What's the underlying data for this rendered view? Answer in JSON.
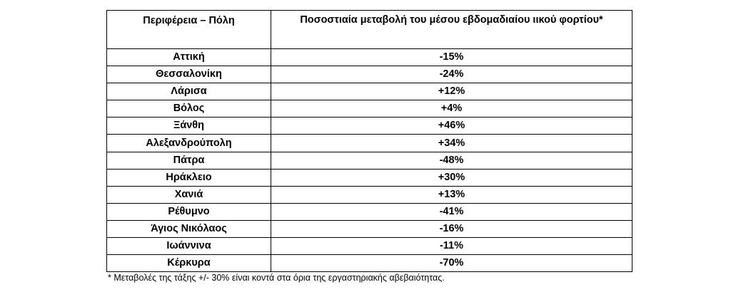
{
  "table": {
    "headers": [
      "Περιφέρεια – Πόλη",
      "Ποσοστιαία μεταβολή του μέσου εβδομαδιαίου ιικού φορτίου*"
    ],
    "rows": [
      {
        "city": "Αττική",
        "change": "-15%"
      },
      {
        "city": "Θεσσαλονίκη",
        "change": "-24%"
      },
      {
        "city": "Λάρισα",
        "change": "+12%"
      },
      {
        "city": "Βόλος",
        "change": "+4%"
      },
      {
        "city": "Ξάνθη",
        "change": "+46%"
      },
      {
        "city": "Αλεξανδρούπολη",
        "change": "+34%"
      },
      {
        "city": "Πάτρα",
        "change": "-48%"
      },
      {
        "city": "Ηράκλειο",
        "change": "+30%"
      },
      {
        "city": "Χανιά",
        "change": "+13%"
      },
      {
        "city": "Ρέθυμνο",
        "change": "-41%"
      },
      {
        "city": "Άγιος Νικόλαος",
        "change": "-16%"
      },
      {
        "city": "Ιωάννινα",
        "change": "-11%"
      },
      {
        "city": "Κέρκυρα",
        "change": "-70%"
      }
    ]
  },
  "footnote": "* Μεταβολές της τάξης +/- 30% είναι κοντά στα όρια της εργαστηριακής αβεβαιότητας."
}
